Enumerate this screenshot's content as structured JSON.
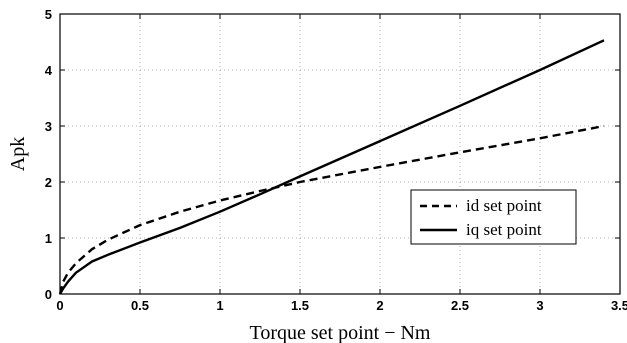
{
  "chart_data": {
    "type": "line",
    "title": "",
    "xlabel": "Torque set point − Nm",
    "ylabel": "Apk",
    "xlim": [
      0,
      3.5
    ],
    "ylim": [
      0,
      5
    ],
    "xticks": [
      0,
      0.5,
      1,
      1.5,
      2,
      2.5,
      3,
      3.5
    ],
    "xtick_labels": [
      "0",
      "0.5",
      "1",
      "1.5",
      "2",
      "2.5",
      "3",
      "3.5"
    ],
    "yticks": [
      0,
      1,
      2,
      3,
      4,
      5
    ],
    "ytick_labels": [
      "0",
      "1",
      "2",
      "3",
      "4",
      "5"
    ],
    "grid": true,
    "legend_position": "bottom-right",
    "series": [
      {
        "name": "id set point",
        "style": "dashed",
        "color": "#000000",
        "x": [
          0,
          0.02,
          0.05,
          0.1,
          0.2,
          0.3,
          0.5,
          0.75,
          1.0,
          1.25,
          1.5,
          2.0,
          2.5,
          3.0,
          3.4
        ],
        "y": [
          0,
          0.22,
          0.38,
          0.55,
          0.8,
          0.97,
          1.23,
          1.47,
          1.67,
          1.84,
          2.0,
          2.27,
          2.53,
          2.78,
          3.0
        ]
      },
      {
        "name": "iq set point",
        "style": "solid",
        "color": "#000000",
        "x": [
          0,
          0.02,
          0.05,
          0.1,
          0.2,
          0.3,
          0.5,
          0.75,
          1.0,
          1.25,
          1.5,
          2.0,
          2.5,
          3.0,
          3.4
        ],
        "y": [
          0,
          0.1,
          0.22,
          0.38,
          0.58,
          0.7,
          0.92,
          1.18,
          1.47,
          1.78,
          2.1,
          2.73,
          3.36,
          4.0,
          4.53
        ]
      }
    ]
  }
}
